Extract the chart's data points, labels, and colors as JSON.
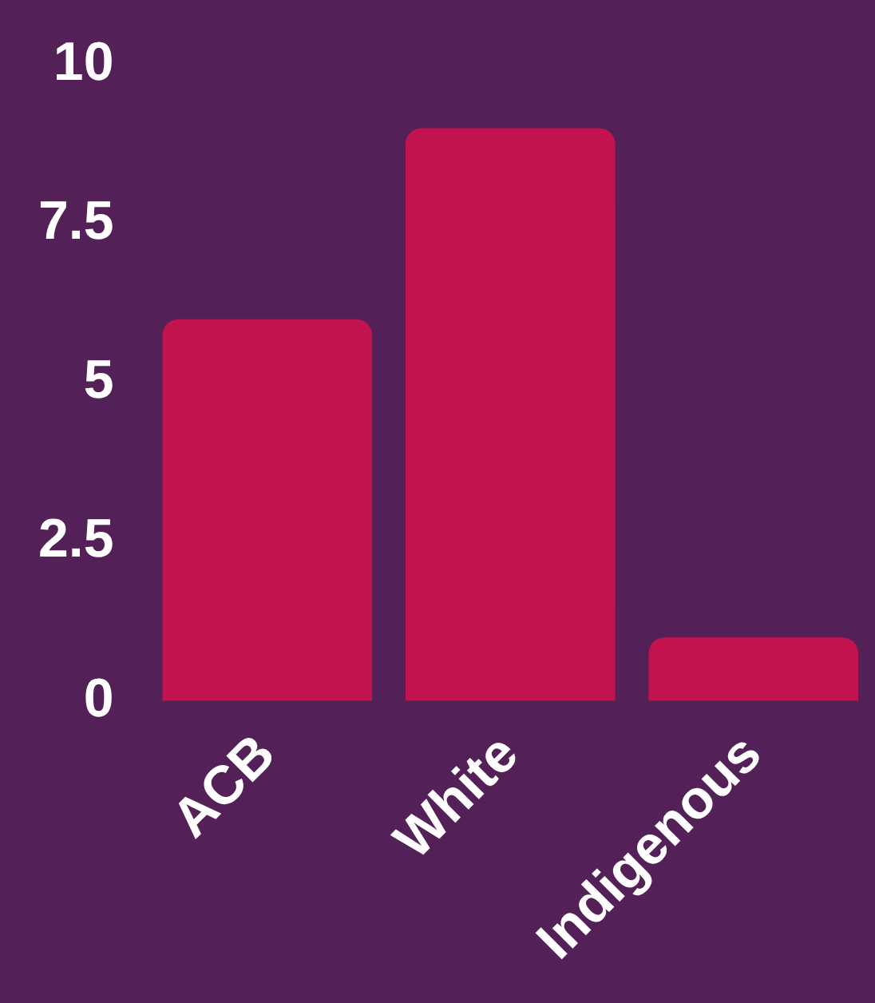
{
  "chart_data": {
    "type": "bar",
    "categories": [
      "ACB",
      "White",
      "Indigenous"
    ],
    "values": [
      6,
      9,
      1
    ],
    "color": "#c2134f",
    "ylim": [
      0,
      10
    ],
    "yticks": [
      0,
      2.5,
      5,
      7.5,
      10
    ],
    "grid": false,
    "legend": false
  }
}
